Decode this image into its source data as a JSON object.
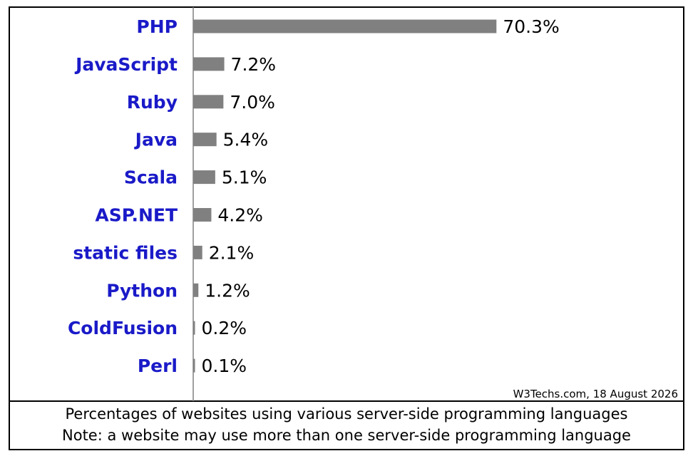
{
  "chart_data": {
    "type": "bar",
    "orientation": "horizontal",
    "categories": [
      "PHP",
      "JavaScript",
      "Ruby",
      "Java",
      "Scala",
      "ASP.NET",
      "static files",
      "Python",
      "ColdFusion",
      "Perl"
    ],
    "values": [
      70.3,
      7.2,
      7.0,
      5.4,
      5.1,
      4.2,
      2.1,
      1.2,
      0.2,
      0.1
    ],
    "value_labels": [
      "70.3%",
      "7.2%",
      "7.0%",
      "5.4%",
      "5.1%",
      "4.2%",
      "2.1%",
      "1.2%",
      "0.2%",
      "0.1%"
    ],
    "xlim": [
      0,
      100
    ],
    "grid": false,
    "legend": "none",
    "source": "W3Techs.com, 18 August 2026",
    "caption_line1": "Percentages of websites using various server-side programming languages",
    "caption_line2": "Note: a website may use more than one server-side programming language"
  },
  "colors": {
    "bar": "#808080",
    "category_label": "#1a1ac8",
    "border": "#000000",
    "axis": "#808080"
  }
}
